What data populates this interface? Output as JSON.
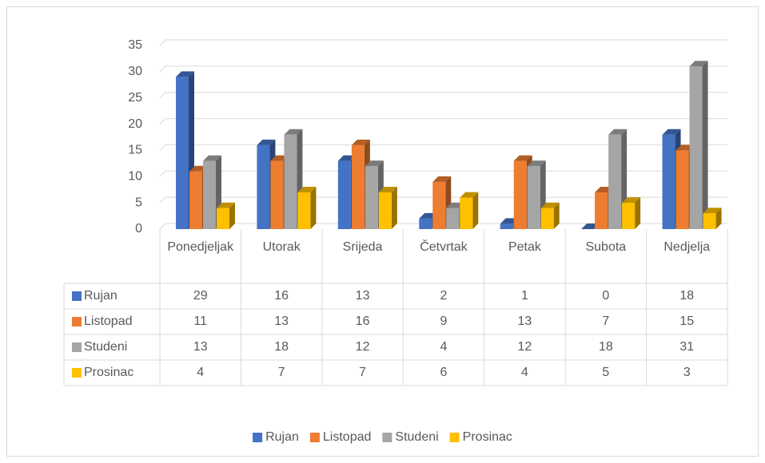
{
  "chart_data": {
    "type": "bar3d",
    "categories": [
      "Ponedjeljak",
      "Utorak",
      "Srijeda",
      "Četvrtak",
      "Petak",
      "Subota",
      "Nedjelja"
    ],
    "series": [
      {
        "name": "Rujan",
        "color": "#4472c4",
        "values": [
          29,
          16,
          13,
          2,
          1,
          0,
          18
        ]
      },
      {
        "name": "Listopad",
        "color": "#ed7d31",
        "values": [
          11,
          13,
          16,
          9,
          13,
          7,
          15
        ]
      },
      {
        "name": "Studeni",
        "color": "#a5a5a5",
        "values": [
          13,
          18,
          12,
          4,
          12,
          18,
          31
        ]
      },
      {
        "name": "Prosinac",
        "color": "#ffc000",
        "values": [
          4,
          7,
          7,
          6,
          4,
          5,
          3
        ]
      }
    ],
    "ylim": [
      0,
      35
    ],
    "yticks": [
      0,
      5,
      10,
      15,
      20,
      25,
      30,
      35
    ],
    "grid": true,
    "legend": "bottom",
    "data_table": true
  }
}
